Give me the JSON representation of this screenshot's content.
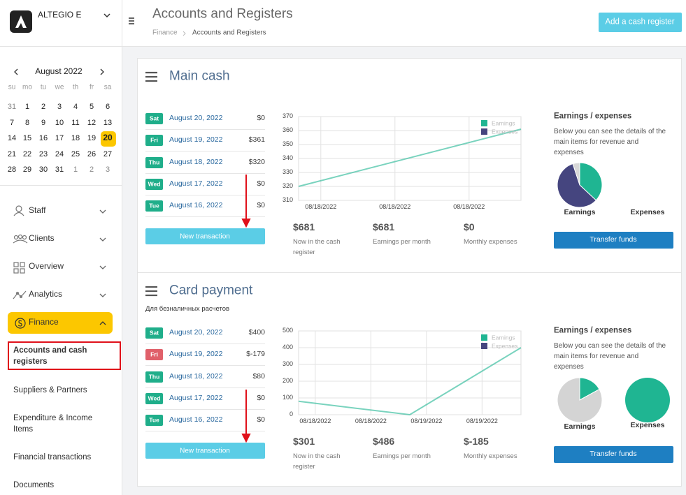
{
  "sidebar": {
    "company": "ALTEGIO E",
    "calendar": {
      "month": "August 2022",
      "weekdays": [
        "su",
        "mo",
        "tu",
        "we",
        "th",
        "fr",
        "sa"
      ],
      "weeks": [
        [
          31,
          1,
          2,
          3,
          4,
          5,
          6
        ],
        [
          7,
          8,
          9,
          10,
          11,
          12,
          13
        ],
        [
          14,
          15,
          16,
          17,
          18,
          19,
          20
        ],
        [
          21,
          22,
          23,
          24,
          25,
          26,
          27
        ],
        [
          28,
          29,
          30,
          31,
          1,
          2,
          3
        ]
      ],
      "selected": 20
    },
    "nav": [
      "Staff",
      "Clients",
      "Overview",
      "Analytics",
      "Finance"
    ],
    "submenu": [
      "Accounts and cash registers",
      "Suppliers & Partners",
      "Expenditure & Income Items",
      "Financial transactions",
      "Documents"
    ]
  },
  "header": {
    "title": "Accounts and Registers",
    "breadcrumb": [
      "Finance",
      "Accounts and Registers"
    ],
    "button": "Add a cash register"
  },
  "registers": [
    {
      "name": "Main cash",
      "transactions": [
        {
          "day": "Sat",
          "date": "August 20, 2022",
          "amount": "$0",
          "color": "#1fae8a"
        },
        {
          "day": "Fri",
          "date": "August 19, 2022",
          "amount": "$361",
          "color": "#1fae8a"
        },
        {
          "day": "Thu",
          "date": "August 18, 2022",
          "amount": "$320",
          "color": "#1fae8a"
        },
        {
          "day": "Wed",
          "date": "August 17, 2022",
          "amount": "$0",
          "color": "#1fae8a"
        },
        {
          "day": "Tue",
          "date": "August 16, 2022",
          "amount": "$0",
          "color": "#1fae8a"
        }
      ],
      "button": "New transaction",
      "chart": {
        "type": "line",
        "ylim": [
          310,
          370
        ],
        "yticks": [
          310,
          320,
          330,
          340,
          350,
          360,
          370
        ],
        "xlabels": [
          "08/18/2022",
          "08/18/2022",
          "08/18/2022"
        ],
        "series": [
          {
            "name": "Earnings",
            "color": "#1fb592",
            "values": [
              320,
              361
            ]
          },
          {
            "name": "Expenses",
            "color": "#45457f",
            "values": []
          }
        ]
      },
      "stats": [
        {
          "value": "$681",
          "label": "Now in the cash register"
        },
        {
          "value": "$681",
          "label": "Earnings per month"
        },
        {
          "value": "$0",
          "label": "Monthly expenses"
        }
      ],
      "pie_title": "Earnings / expenses",
      "pie_text": "Below you can see the details of the main items for revenue and expenses",
      "pies": [
        {
          "label": "Earnings",
          "values": [
            37,
            58,
            5
          ],
          "colors": [
            "#1fb592",
            "#45457f",
            "#d8d8d8"
          ]
        },
        {
          "label": "Expenses"
        }
      ],
      "transfer": "Transfer funds"
    },
    {
      "name": "Card payment",
      "subtitle": "Для безналичных расчетов",
      "transactions": [
        {
          "day": "Sat",
          "date": "August 20, 2022",
          "amount": "$400",
          "color": "#1fae8a"
        },
        {
          "day": "Fri",
          "date": "August 19, 2022",
          "amount": "$-179",
          "color": "#e0606a"
        },
        {
          "day": "Thu",
          "date": "August 18, 2022",
          "amount": "$80",
          "color": "#1fae8a"
        },
        {
          "day": "Wed",
          "date": "August 17, 2022",
          "amount": "$0",
          "color": "#1fae8a"
        },
        {
          "day": "Tue",
          "date": "August 16, 2022",
          "amount": "$0",
          "color": "#1fae8a"
        }
      ],
      "button": "New transaction",
      "chart": {
        "type": "line",
        "ylim": [
          0,
          500
        ],
        "yticks": [
          0,
          100,
          200,
          300,
          400,
          500
        ],
        "xlabels": [
          "08/18/2022",
          "08/18/2022",
          "08/19/2022",
          "08/19/2022"
        ],
        "series": [
          {
            "name": "Earnings",
            "color": "#1fb592",
            "values": [
              80,
              0,
              400
            ]
          },
          {
            "name": "Expenses",
            "color": "#45457f",
            "values": []
          }
        ]
      },
      "stats": [
        {
          "value": "$301",
          "label": "Now in the cash register"
        },
        {
          "value": "$486",
          "label": "Earnings per month"
        },
        {
          "value": "$-185",
          "label": "Monthly expenses"
        }
      ],
      "pie_title": "Earnings / expenses",
      "pie_text": "Below you can see the details of the main items for revenue and expenses",
      "pies": [
        {
          "label": "Earnings",
          "values": [
            17,
            83
          ],
          "colors": [
            "#1fb592",
            "#d4d4d4"
          ]
        },
        {
          "label": "Expenses",
          "values": [
            100
          ],
          "colors": [
            "#1fb592"
          ]
        }
      ],
      "transfer": "Transfer funds"
    }
  ]
}
